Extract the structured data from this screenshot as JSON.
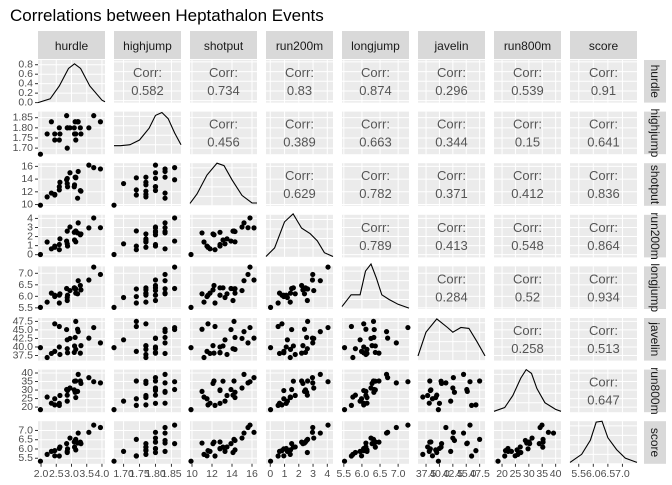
{
  "chart_data": {
    "type": "scatter",
    "title": "Correlations between Heptathalon Events",
    "variables": [
      "hurdle",
      "highjump",
      "shotput",
      "run200m",
      "longjump",
      "javelin",
      "run800m",
      "score"
    ],
    "corr_label": "Corr:",
    "correlations": [
      [
        "",
        "0.582",
        "0.734",
        "0.83",
        "0.874",
        "0.296",
        "0.539",
        "0.91"
      ],
      [
        "",
        "",
        "0.456",
        "0.389",
        "0.663",
        "0.344",
        "0.15",
        "0.641"
      ],
      [
        "",
        "",
        "",
        "0.629",
        "0.782",
        "0.371",
        "0.412",
        "0.836"
      ],
      [
        "",
        "",
        "",
        "",
        "0.789",
        "0.413",
        "0.548",
        "0.864"
      ],
      [
        "",
        "",
        "",
        "",
        "",
        "0.284",
        "0.52",
        "0.934"
      ],
      [
        "",
        "",
        "",
        "",
        "",
        "",
        "0.258",
        "0.513"
      ],
      [
        "",
        "",
        "",
        "",
        "",
        "",
        "",
        "0.647"
      ],
      [
        "",
        "",
        "",
        "",
        "",
        "",
        "",
        ""
      ]
    ],
    "axes": {
      "hurdle": {
        "range": [
          1.9,
          4.1
        ],
        "ticks": [
          2.0,
          2.5,
          3.0,
          3.5,
          4.0
        ],
        "tick_labels": [
          "2.0",
          "2.5",
          "3.0",
          "3.5",
          "4.0"
        ]
      },
      "highjump": {
        "range": [
          1.67,
          1.88
        ],
        "ticks": [
          1.7,
          1.75,
          1.8,
          1.85
        ],
        "tick_labels": [
          "1.70",
          "1.75",
          "1.80",
          "1.85"
        ]
      },
      "shotput": {
        "range": [
          9.8,
          16.5
        ],
        "ticks": [
          10,
          12,
          14,
          16
        ],
        "tick_labels": [
          "10",
          "12",
          "14",
          "16"
        ]
      },
      "run200m": {
        "range": [
          -0.3,
          4.4
        ],
        "ticks": [
          0,
          1,
          2,
          3,
          4
        ],
        "tick_labels": [
          "0",
          "1",
          "2",
          "3",
          "4"
        ]
      },
      "longjump": {
        "range": [
          5.45,
          7.3
        ],
        "ticks": [
          5.5,
          6.0,
          6.5,
          7.0
        ],
        "tick_labels": [
          "5.5",
          "6.0",
          "6.5",
          "7.0"
        ]
      },
      "javelin": {
        "range": [
          36,
          48.5
        ],
        "ticks": [
          37.5,
          40.0,
          42.5,
          45.0,
          47.5
        ],
        "tick_labels": [
          "37.5",
          "40.0",
          "42.5",
          "45.0",
          "47.5"
        ]
      },
      "run800m": {
        "range": [
          17,
          42
        ],
        "ticks": [
          20,
          25,
          30,
          35,
          40
        ],
        "tick_labels": [
          "20",
          "25",
          "30",
          "35",
          "40"
        ]
      },
      "score": {
        "range": [
          5.2,
          7.5
        ],
        "ticks": [
          5.5,
          6.0,
          6.5,
          7.0
        ],
        "tick_labels": [
          "5.5",
          "6.0",
          "6.5",
          "7.0"
        ]
      }
    },
    "density_y_axis": {
      "range": [
        0,
        0.9
      ],
      "ticks": [
        0.0,
        0.2,
        0.4,
        0.6,
        0.8
      ],
      "tick_labels": [
        "0.0",
        "0.2",
        "0.4",
        "0.6",
        "0.8"
      ]
    },
    "densities": [
      {
        "variable": "hurdle",
        "x": [
          1.9,
          2.3,
          2.6,
          2.9,
          3.1,
          3.3,
          3.6,
          4.0,
          4.1
        ],
        "y": [
          0.0,
          0.08,
          0.35,
          0.72,
          0.82,
          0.72,
          0.35,
          0.05,
          0.02
        ]
      },
      {
        "variable": "highjump",
        "x": [
          1.67,
          1.69,
          1.72,
          1.75,
          1.78,
          1.8,
          1.82,
          1.84,
          1.86,
          1.88
        ],
        "y": [
          0.18,
          0.18,
          0.2,
          0.3,
          0.55,
          0.82,
          0.88,
          0.75,
          0.45,
          0.2
        ]
      },
      {
        "variable": "shotput",
        "x": [
          9.8,
          10.5,
          11.5,
          12.5,
          13.2,
          14,
          15,
          16,
          16.5
        ],
        "y": [
          0.05,
          0.25,
          0.65,
          0.9,
          0.85,
          0.55,
          0.22,
          0.06,
          0.06
        ]
      },
      {
        "variable": "run200m",
        "x": [
          -0.3,
          0.3,
          1.0,
          1.6,
          2.2,
          2.8,
          3.3,
          3.8,
          4.4
        ],
        "y": [
          0.02,
          0.2,
          0.75,
          0.92,
          0.62,
          0.5,
          0.35,
          0.1,
          0.02
        ]
      },
      {
        "variable": "longjump",
        "x": [
          5.45,
          5.7,
          5.95,
          6.1,
          6.25,
          6.4,
          6.55,
          6.75,
          7.0,
          7.3
        ],
        "y": [
          0.05,
          0.3,
          0.3,
          0.8,
          0.95,
          0.65,
          0.3,
          0.2,
          0.1,
          0.02
        ]
      },
      {
        "variable": "javelin",
        "x": [
          36,
          37.5,
          39.5,
          41.5,
          42.5,
          44,
          45.5,
          47,
          48.5
        ],
        "y": [
          0.1,
          0.6,
          0.88,
          0.7,
          0.6,
          0.7,
          0.68,
          0.4,
          0.1
        ]
      },
      {
        "variable": "run800m",
        "x": [
          17,
          21,
          24,
          27,
          29,
          31,
          33,
          36,
          40,
          42
        ],
        "y": [
          0.02,
          0.1,
          0.35,
          0.72,
          0.9,
          0.82,
          0.5,
          0.2,
          0.06,
          0.02
        ]
      },
      {
        "variable": "score",
        "x": [
          5.2,
          5.6,
          5.9,
          6.1,
          6.3,
          6.5,
          6.8,
          7.1,
          7.5
        ],
        "y": [
          0.03,
          0.2,
          0.5,
          0.88,
          0.9,
          0.55,
          0.3,
          0.12,
          0.03
        ]
      }
    ],
    "observations": [
      [
        3.73,
        1.86,
        15.8,
        4.05,
        7.27,
        45.7,
        34.9,
        7.29
      ],
      [
        3.57,
        1.8,
        16.2,
        2.96,
        6.71,
        42.6,
        37.3,
        6.9
      ],
      [
        3.22,
        1.83,
        15.2,
        3.51,
        6.68,
        44.5,
        39.2,
        6.86
      ],
      [
        2.95,
        1.8,
        15.0,
        3.05,
        6.25,
        42.5,
        31.2,
        6.59
      ],
      [
        3.14,
        1.74,
        14.2,
        2.62,
        6.32,
        47.5,
        35.3,
        6.52
      ],
      [
        3.12,
        1.83,
        14.3,
        2.55,
        6.33,
        42.8,
        28.7,
        6.46
      ],
      [
        3.09,
        1.8,
        12.8,
        2.47,
        6.37,
        38.4,
        30.1,
        6.38
      ],
      [
        3.29,
        1.8,
        12.2,
        2.2,
        6.47,
        38.2,
        35.3,
        6.37
      ],
      [
        3.2,
        1.83,
        11.0,
        2.4,
        6.11,
        45.2,
        29.2,
        6.32
      ],
      [
        3.31,
        1.77,
        12.1,
        2.29,
        6.28,
        40.4,
        33.9,
        6.29
      ],
      [
        2.84,
        1.86,
        13.9,
        1.5,
        6.34,
        45.1,
        30.3,
        6.29
      ],
      [
        2.62,
        1.77,
        13.5,
        1.75,
        6.11,
        37.8,
        26.8,
        6.11
      ],
      [
        3.1,
        1.77,
        13.1,
        1.62,
        6.37,
        40.3,
        35.2,
        6.1
      ],
      [
        2.6,
        1.8,
        12.8,
        1.12,
        6.05,
        40.0,
        22.2,
        6.03
      ],
      [
        2.87,
        1.8,
        12.8,
        0.95,
        6.05,
        38.3,
        29.7,
        6.01
      ],
      [
        3.14,
        1.77,
        14.3,
        1.42,
        6.14,
        39.3,
        25.6,
        5.95
      ],
      [
        2.45,
        1.77,
        11.6,
        0.82,
        6.05,
        46.8,
        21.3,
        5.91
      ],
      [
        2.86,
        1.7,
        13.3,
        1.2,
        5.95,
        42.1,
        23.5,
        5.87
      ],
      [
        2.34,
        1.83,
        11.8,
        0.65,
        6.14,
        38.1,
        22.3,
        5.87
      ],
      [
        2.86,
        1.8,
        14.1,
        2.6,
        5.82,
        39.5,
        27.0,
        5.81
      ],
      [
        2.2,
        1.77,
        11.2,
        1.4,
        5.75,
        36.9,
        25.9,
        5.71
      ],
      [
        2.45,
        1.74,
        11.5,
        0.95,
        5.99,
        38.7,
        24.9,
        5.63
      ],
      [
        2.6,
        1.74,
        12.3,
        0.55,
        5.71,
        46.0,
        21.0,
        5.62
      ],
      [
        1.98,
        1.67,
        9.9,
        0.02,
        5.52,
        39.8,
        18.5,
        5.34
      ],
      [
        3.95,
        1.83,
        15.6,
        2.98,
        6.95,
        41.2,
        34.2,
        7.16
      ]
    ]
  }
}
